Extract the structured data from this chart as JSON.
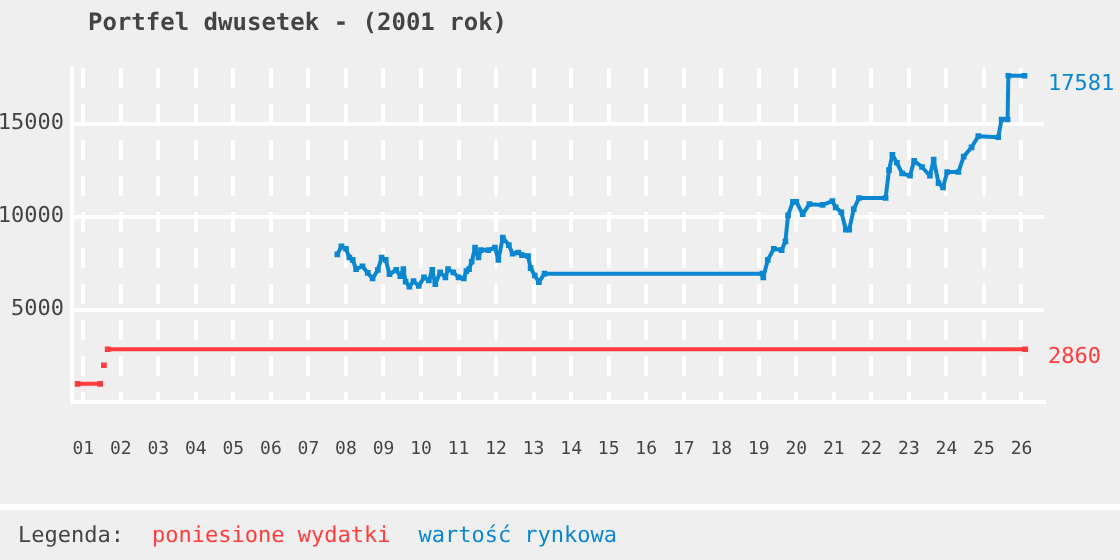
{
  "chart_data": {
    "type": "line",
    "title": "Portfel dwusetek - (2001 rok)",
    "legend_title": "Legenda:",
    "legend": "bottom",
    "grid": true,
    "marker": "square",
    "line_style": "solid",
    "xlim": [
      0.7,
      26.6
    ],
    "xticks": [
      {
        "value": 1,
        "label": "01"
      },
      {
        "value": 2,
        "label": "02"
      },
      {
        "value": 3,
        "label": "03"
      },
      {
        "value": 4,
        "label": "04"
      },
      {
        "value": 5,
        "label": "05"
      },
      {
        "value": 6,
        "label": "06"
      },
      {
        "value": 7,
        "label": "07"
      },
      {
        "value": 8,
        "label": "08"
      },
      {
        "value": 9,
        "label": "09"
      },
      {
        "value": 10,
        "label": "10"
      },
      {
        "value": 11,
        "label": "11"
      },
      {
        "value": 12,
        "label": "12"
      },
      {
        "value": 13,
        "label": "13"
      },
      {
        "value": 14,
        "label": "14"
      },
      {
        "value": 15,
        "label": "15"
      },
      {
        "value": 16,
        "label": "16"
      },
      {
        "value": 17,
        "label": "17"
      },
      {
        "value": 18,
        "label": "18"
      },
      {
        "value": 19,
        "label": "19"
      },
      {
        "value": 20,
        "label": "20"
      },
      {
        "value": 21,
        "label": "21"
      },
      {
        "value": 22,
        "label": "22"
      },
      {
        "value": 23,
        "label": "23"
      },
      {
        "value": 24,
        "label": "24"
      },
      {
        "value": 25,
        "label": "25"
      },
      {
        "value": 26,
        "label": "26"
      }
    ],
    "ylim": [
      0,
      18000
    ],
    "yticks": [
      5000,
      10000,
      15000
    ],
    "series": [
      {
        "name": "poniesione wydatki",
        "color": "#ff3b3b",
        "x": [
          0.85,
          1.45,
          1.5,
          1.55,
          1.6,
          1.65,
          26.1
        ],
        "values": [
          1000,
          1000,
          null,
          2000,
          null,
          2860,
          2860
        ],
        "value_labels": [
          null,
          null,
          null,
          null,
          null,
          null,
          "2860"
        ]
      },
      {
        "name": "wartość rynkowa",
        "color": "#0a87d0",
        "x": [
          7.77,
          7.88,
          8.0,
          8.09,
          8.18,
          8.27,
          8.44,
          8.58,
          8.71,
          8.85,
          8.95,
          9.06,
          9.16,
          9.34,
          9.45,
          9.53,
          9.59,
          9.69,
          9.8,
          9.94,
          10.08,
          10.21,
          10.3,
          10.38,
          10.51,
          10.65,
          10.72,
          10.86,
          11.0,
          11.14,
          11.21,
          11.28,
          11.35,
          11.44,
          11.53,
          11.6,
          11.79,
          11.97,
          12.06,
          12.18,
          12.34,
          12.44,
          12.59,
          12.69,
          12.85,
          12.92,
          13.03,
          13.14,
          13.29,
          19.1,
          19.12,
          19.24,
          19.4,
          19.61,
          19.71,
          19.78,
          19.91,
          20.0,
          20.17,
          20.35,
          20.7,
          20.96,
          21.05,
          21.2,
          21.32,
          21.41,
          21.53,
          21.67,
          22.38,
          22.47,
          22.56,
          22.68,
          22.82,
          23.03,
          23.14,
          23.35,
          23.56,
          23.66,
          23.79,
          23.91,
          24.02,
          24.32,
          24.46,
          24.67,
          24.85,
          25.38,
          25.47,
          25.63,
          25.65,
          26.08
        ],
        "values": [
          7970,
          8400,
          8270,
          7800,
          7670,
          7170,
          7330,
          6970,
          6670,
          7130,
          7800,
          7670,
          6900,
          7130,
          6800,
          7170,
          6500,
          6230,
          6530,
          6270,
          6730,
          6570,
          7130,
          6370,
          7000,
          6730,
          7170,
          7000,
          6730,
          6670,
          7070,
          7170,
          7570,
          8330,
          7800,
          8200,
          8200,
          8330,
          7670,
          8870,
          8470,
          8000,
          8070,
          7930,
          7870,
          7230,
          6830,
          6470,
          6930,
          6930,
          6730,
          7670,
          8270,
          8200,
          8670,
          10070,
          10800,
          10800,
          10130,
          10670,
          10630,
          10830,
          10500,
          10230,
          9300,
          9300,
          10400,
          11000,
          11000,
          12500,
          13330,
          12900,
          12330,
          12200,
          13000,
          12670,
          12200,
          13070,
          11800,
          11570,
          12400,
          12400,
          13230,
          13730,
          14330,
          14270,
          15230,
          15230,
          17581,
          17581
        ],
        "value_labels": [
          null,
          null,
          null,
          null,
          null,
          null,
          null,
          null,
          null,
          null,
          null,
          null,
          null,
          null,
          null,
          null,
          null,
          null,
          null,
          null,
          null,
          null,
          null,
          null,
          null,
          null,
          null,
          null,
          null,
          null,
          null,
          null,
          null,
          null,
          null,
          null,
          null,
          null,
          null,
          null,
          null,
          null,
          null,
          null,
          null,
          null,
          null,
          null,
          null,
          null,
          null,
          null,
          null,
          null,
          null,
          null,
          null,
          null,
          null,
          null,
          null,
          null,
          null,
          null,
          null,
          null,
          null,
          null,
          null,
          null,
          null,
          null,
          null,
          null,
          null,
          null,
          null,
          null,
          null,
          null,
          null,
          null,
          null,
          null,
          null,
          null,
          null,
          null,
          null,
          "17581"
        ]
      }
    ]
  }
}
